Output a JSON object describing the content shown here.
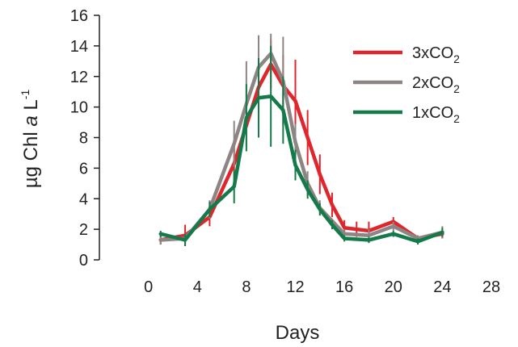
{
  "chart_data": {
    "type": "line",
    "xlabel": "Days",
    "ylabel": {
      "pre": "µg Chl ",
      "italic": "a",
      "unit": " L",
      "sup": "-1"
    },
    "xlim": [
      -4,
      28
    ],
    "ylim": [
      0,
      16
    ],
    "xticks": [
      0,
      4,
      8,
      12,
      16,
      20,
      24,
      28
    ],
    "yticks": [
      0,
      2,
      4,
      6,
      8,
      10,
      12,
      14,
      16
    ],
    "grid": false,
    "legend_position": "top-right",
    "series": [
      {
        "name": "3xCO2",
        "label_main": "3xCO",
        "label_sub": "2",
        "color": "#e0262d",
        "x": [
          1,
          3,
          5,
          7,
          9,
          10,
          11,
          12,
          13,
          14,
          15,
          16,
          17,
          18,
          20,
          22,
          24
        ],
        "y": [
          1.3,
          1.6,
          2.8,
          6.3,
          11.3,
          12.8,
          11.4,
          10.4,
          8.0,
          5.6,
          3.6,
          2.1,
          2.0,
          1.9,
          2.5,
          1.4,
          1.7
        ],
        "err": [
          0.3,
          0.7,
          0.6,
          1.4,
          2.2,
          1.6,
          2.0,
          2.7,
          1.8,
          1.3,
          0.8,
          0.5,
          0.5,
          0.6,
          0.3,
          0.2,
          0.3
        ]
      },
      {
        "name": "2xCO2",
        "label_main": "2xCO",
        "label_sub": "2",
        "color": "#8c8583",
        "x": [
          1,
          3,
          5,
          7,
          8,
          9,
          10,
          11,
          12,
          13,
          14,
          16,
          18,
          20,
          22,
          24
        ],
        "y": [
          1.3,
          1.4,
          3.3,
          7.6,
          10.2,
          12.6,
          13.5,
          11.7,
          7.7,
          5.0,
          3.4,
          1.7,
          1.6,
          2.2,
          1.4,
          1.8
        ],
        "err": [
          0.3,
          0.3,
          0.6,
          1.5,
          2.8,
          2.1,
          1.3,
          2.9,
          1.2,
          0.8,
          0.5,
          0.3,
          0.4,
          0.3,
          0.2,
          0.4
        ]
      },
      {
        "name": "1xCO2",
        "label_main": "1xCO",
        "label_sub": "2",
        "color": "#157a4a",
        "x": [
          1,
          3,
          5,
          7,
          8,
          9,
          10,
          11,
          12,
          13,
          14,
          15,
          16,
          18,
          20,
          22,
          24
        ],
        "y": [
          1.7,
          1.3,
          3.3,
          4.8,
          9.3,
          10.6,
          10.7,
          9.8,
          6.2,
          4.6,
          3.3,
          2.3,
          1.4,
          1.3,
          1.7,
          1.2,
          1.8
        ],
        "err": [
          0.2,
          0.4,
          0.5,
          1.1,
          2.2,
          2.6,
          3.3,
          2.2,
          1.0,
          0.6,
          0.4,
          0.3,
          0.2,
          0.2,
          0.2,
          0.2,
          0.3
        ]
      }
    ]
  }
}
